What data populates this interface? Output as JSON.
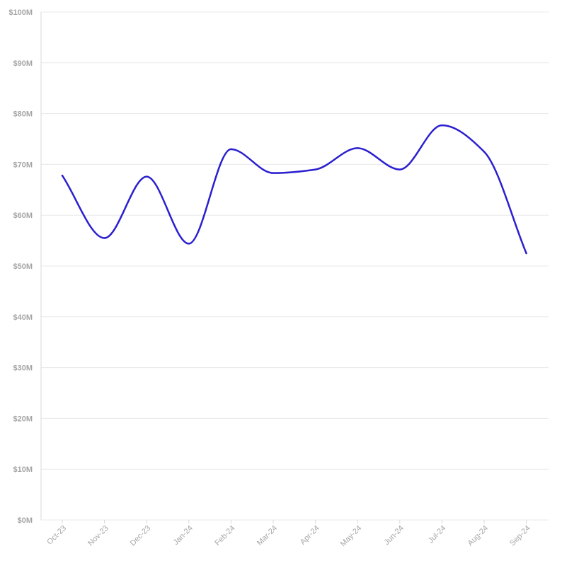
{
  "chart_data": {
    "type": "line",
    "title": "",
    "xlabel": "",
    "ylabel": "",
    "categories": [
      "Oct-23",
      "Nov-23",
      "Dec-23",
      "Jan-24",
      "Feb-24",
      "Mar-24",
      "Apr-24",
      "May-24",
      "Jun-24",
      "Jul-24",
      "Aug-24",
      "Sep-24"
    ],
    "series": [
      {
        "values": [
          67.8,
          55.5,
          67.6,
          54.4,
          73.0,
          68.3,
          69.0,
          73.2,
          69.0,
          77.7,
          72.5,
          52.5
        ]
      }
    ],
    "ylim": [
      0,
      100
    ],
    "y_ticks": [
      0,
      10,
      20,
      30,
      40,
      50,
      60,
      70,
      80,
      90,
      100
    ],
    "y_tick_labels": [
      "$0M",
      "$10M",
      "$20M",
      "$30M",
      "$40M",
      "$50M",
      "$60M",
      "$70M",
      "$80M",
      "$90M",
      "$100M"
    ],
    "grid": true,
    "line_color": "#2b1fcf",
    "grid_color": "#e8e8e8",
    "tick_label_color": "#a6a6a6"
  }
}
